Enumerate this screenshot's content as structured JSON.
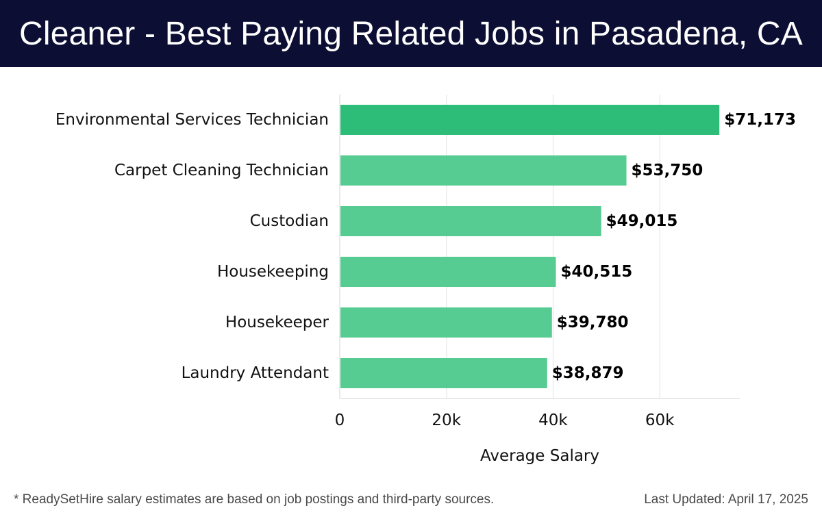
{
  "header": {
    "title": "Cleaner - Best Paying Related Jobs in Pasadena, CA"
  },
  "footer": {
    "note": "* ReadySetHire salary estimates are based on job postings and third-party sources.",
    "updated": "Last Updated: April 17, 2025"
  },
  "colors": {
    "header_bg": "#0c0f33",
    "bar_top": "#2dbd78",
    "bar": "#56cb92"
  },
  "chart_data": {
    "type": "bar",
    "orientation": "horizontal",
    "categories": [
      "Environmental Services Technician",
      "Carpet Cleaning Technician",
      "Custodian",
      "Housekeeping",
      "Housekeeper",
      "Laundry Attendant"
    ],
    "values": [
      71173,
      53750,
      49015,
      40515,
      39780,
      38879
    ],
    "value_labels": [
      "$71,173",
      "$53,750",
      "$49,015",
      "$40,515",
      "$39,780",
      "$38,879"
    ],
    "xlabel": "Average Salary",
    "ylabel": "",
    "xlim": [
      0,
      75000
    ],
    "xticks": [
      0,
      20000,
      40000,
      60000
    ],
    "xtick_labels": [
      "0",
      "20k",
      "40k",
      "60k"
    ],
    "grid": true
  }
}
